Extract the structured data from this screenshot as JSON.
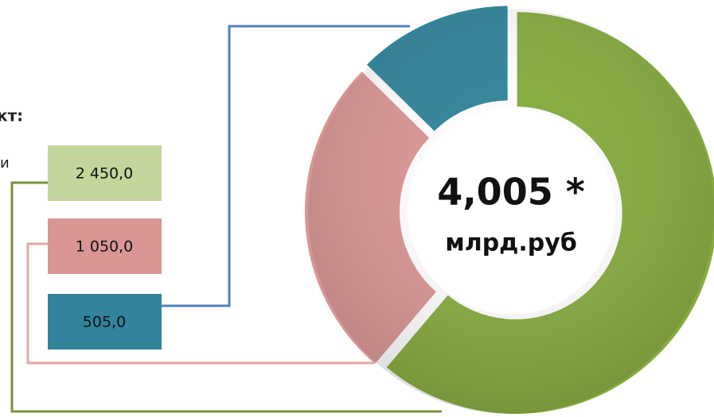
{
  "chart_data": {
    "type": "donut",
    "values": [
      2450,
      1050,
      505
    ],
    "value_labels": [
      "2 450,0",
      "1 050,0",
      "505,0"
    ],
    "colors": [
      "#86ab3e",
      "#d99694",
      "#31849b"
    ],
    "box_colors": [
      "#c3d69b",
      "#d99694",
      "#31849b"
    ],
    "line_colors": [
      "#77933c",
      "#e6a5a3",
      "#4f81bd"
    ],
    "center_text": "4,005 *",
    "center_unit": "млрд.руб",
    "annotations": [
      "кт:",
      "и"
    ]
  }
}
